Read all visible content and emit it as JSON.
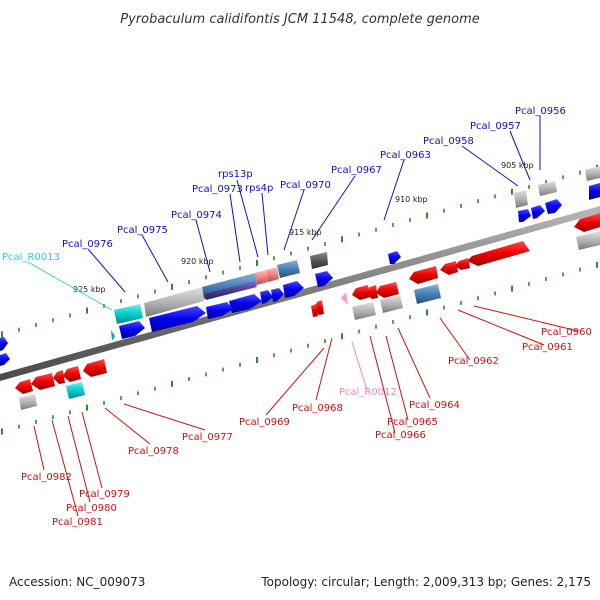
{
  "title": "Pyrobaculum calidifontis JCM 11548, complete genome",
  "footer": {
    "accession": "Accession: NC_009073",
    "stats": "Topology: circular; Length: 2,009,313 bp; Genes: 2,175"
  },
  "colors": {
    "forward_strand": "#0000ee",
    "reverse_strand": "#ee0000",
    "rna_forward": "#00cccc",
    "rna_reverse": "#ff99cc",
    "pseudogene": "#b0b0b0",
    "backbone": "#808080",
    "tick": "#2e8b2e",
    "label_forward": "#1010c0",
    "label_reverse": "#cc1010",
    "label_trna_forward": "#00aacc",
    "label_trna_reverse": "#ee88bb"
  },
  "ruler": [
    "905 kbp",
    "910 kbp",
    "915 kbp",
    "920 kbp",
    "925 kbp"
  ],
  "genes_top": [
    "Pcal_0956",
    "Pcal_0957",
    "Pcal_0958",
    "Pcal_0963",
    "Pcal_0967",
    "Pcal_0970",
    "rps4p",
    "rps13p",
    "Pcal_0973",
    "Pcal_0974",
    "Pcal_0975",
    "Pcal_0976",
    "Pcal_R0013"
  ],
  "genes_bottom": [
    "Pcal_0960",
    "Pcal_0961",
    "Pcal_0962",
    "Pcal_0964",
    "Pcal_0965",
    "Pcal_0966",
    "Pcal_R0012",
    "Pcal_0968",
    "Pcal_0969",
    "Pcal_0977",
    "Pcal_0978",
    "Pcal_0979",
    "Pcal_0980",
    "Pcal_0981",
    "Pcal_0982"
  ]
}
